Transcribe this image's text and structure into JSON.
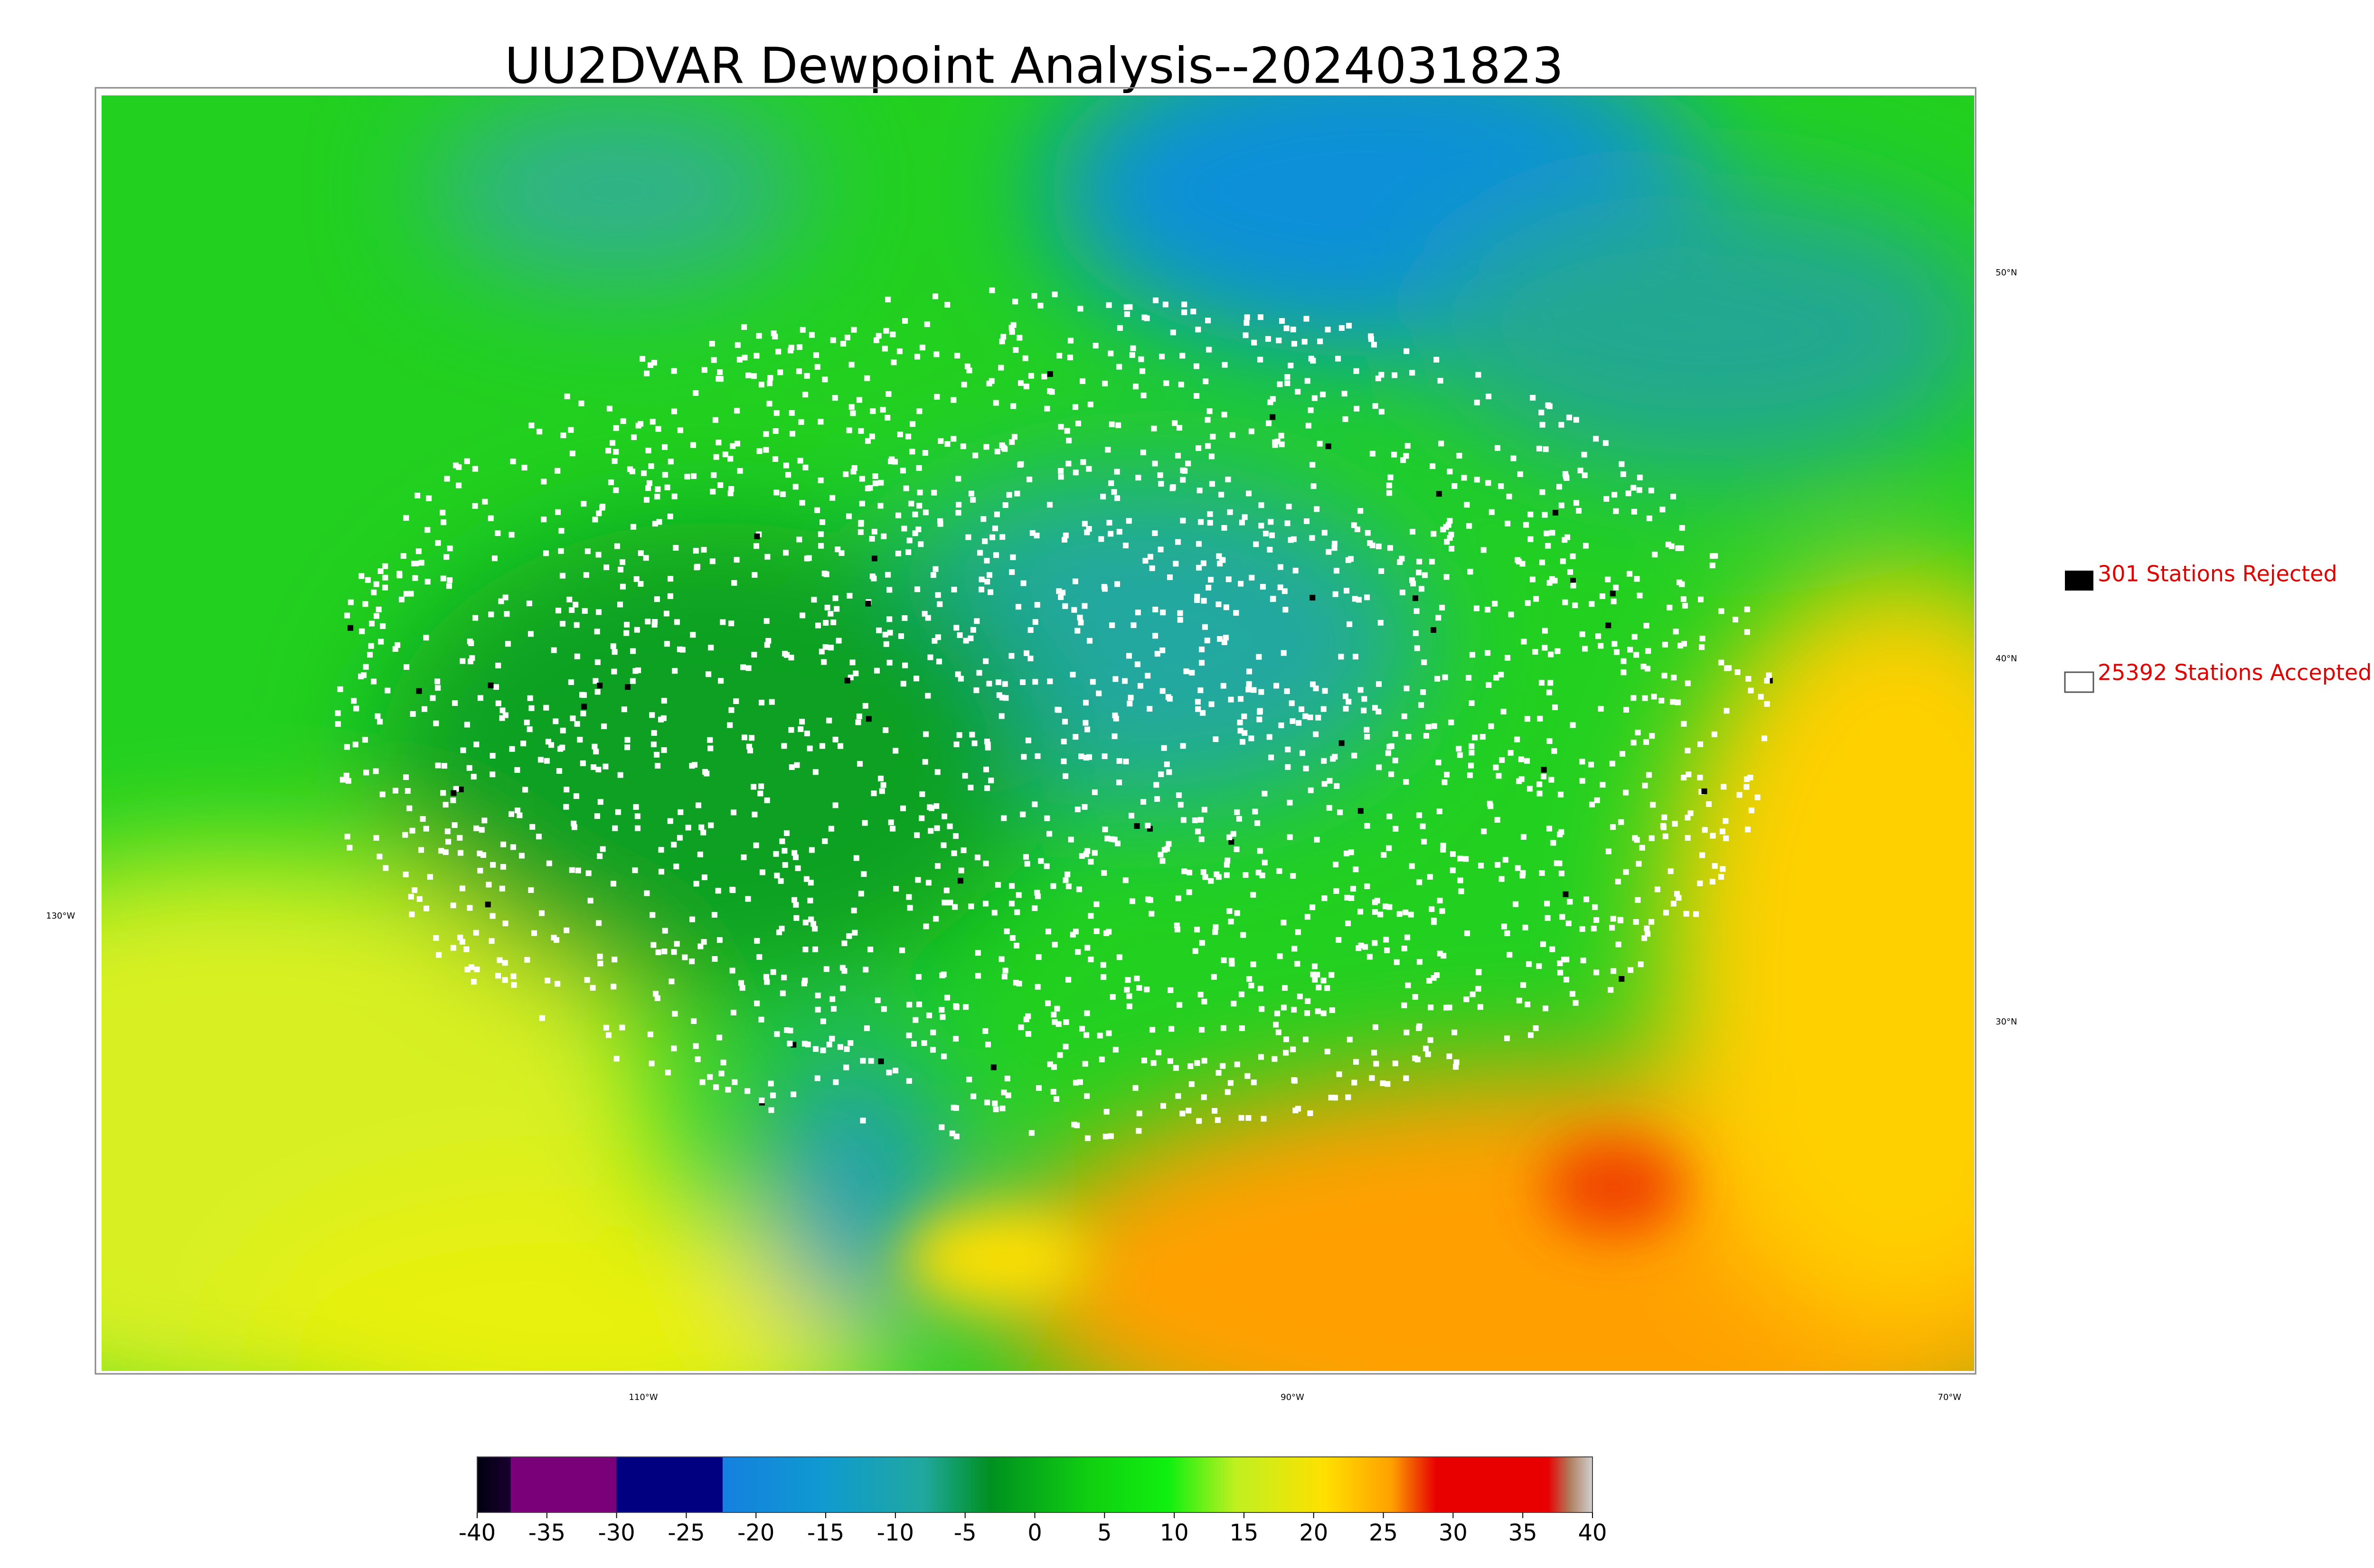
{
  "title": "UU2DVAR Dewpoint Analysis--2024031823",
  "legend": [
    "301 Stations Rejected",
    "25392 Stations Accepted"
  ],
  "latitude_labels": [
    "50°N",
    "40°N",
    "30°N"
  ],
  "longitude_labels": [
    "130°W",
    "110°W",
    "90°W",
    "70°W"
  ],
  "colorbar": {
    "range": [
      -40,
      40
    ],
    "ticks": [
      -40,
      -35,
      -30,
      -25,
      -20,
      -15,
      -10,
      -5,
      0,
      5,
      10,
      15,
      20,
      25,
      30,
      35,
      40
    ]
  }
}
